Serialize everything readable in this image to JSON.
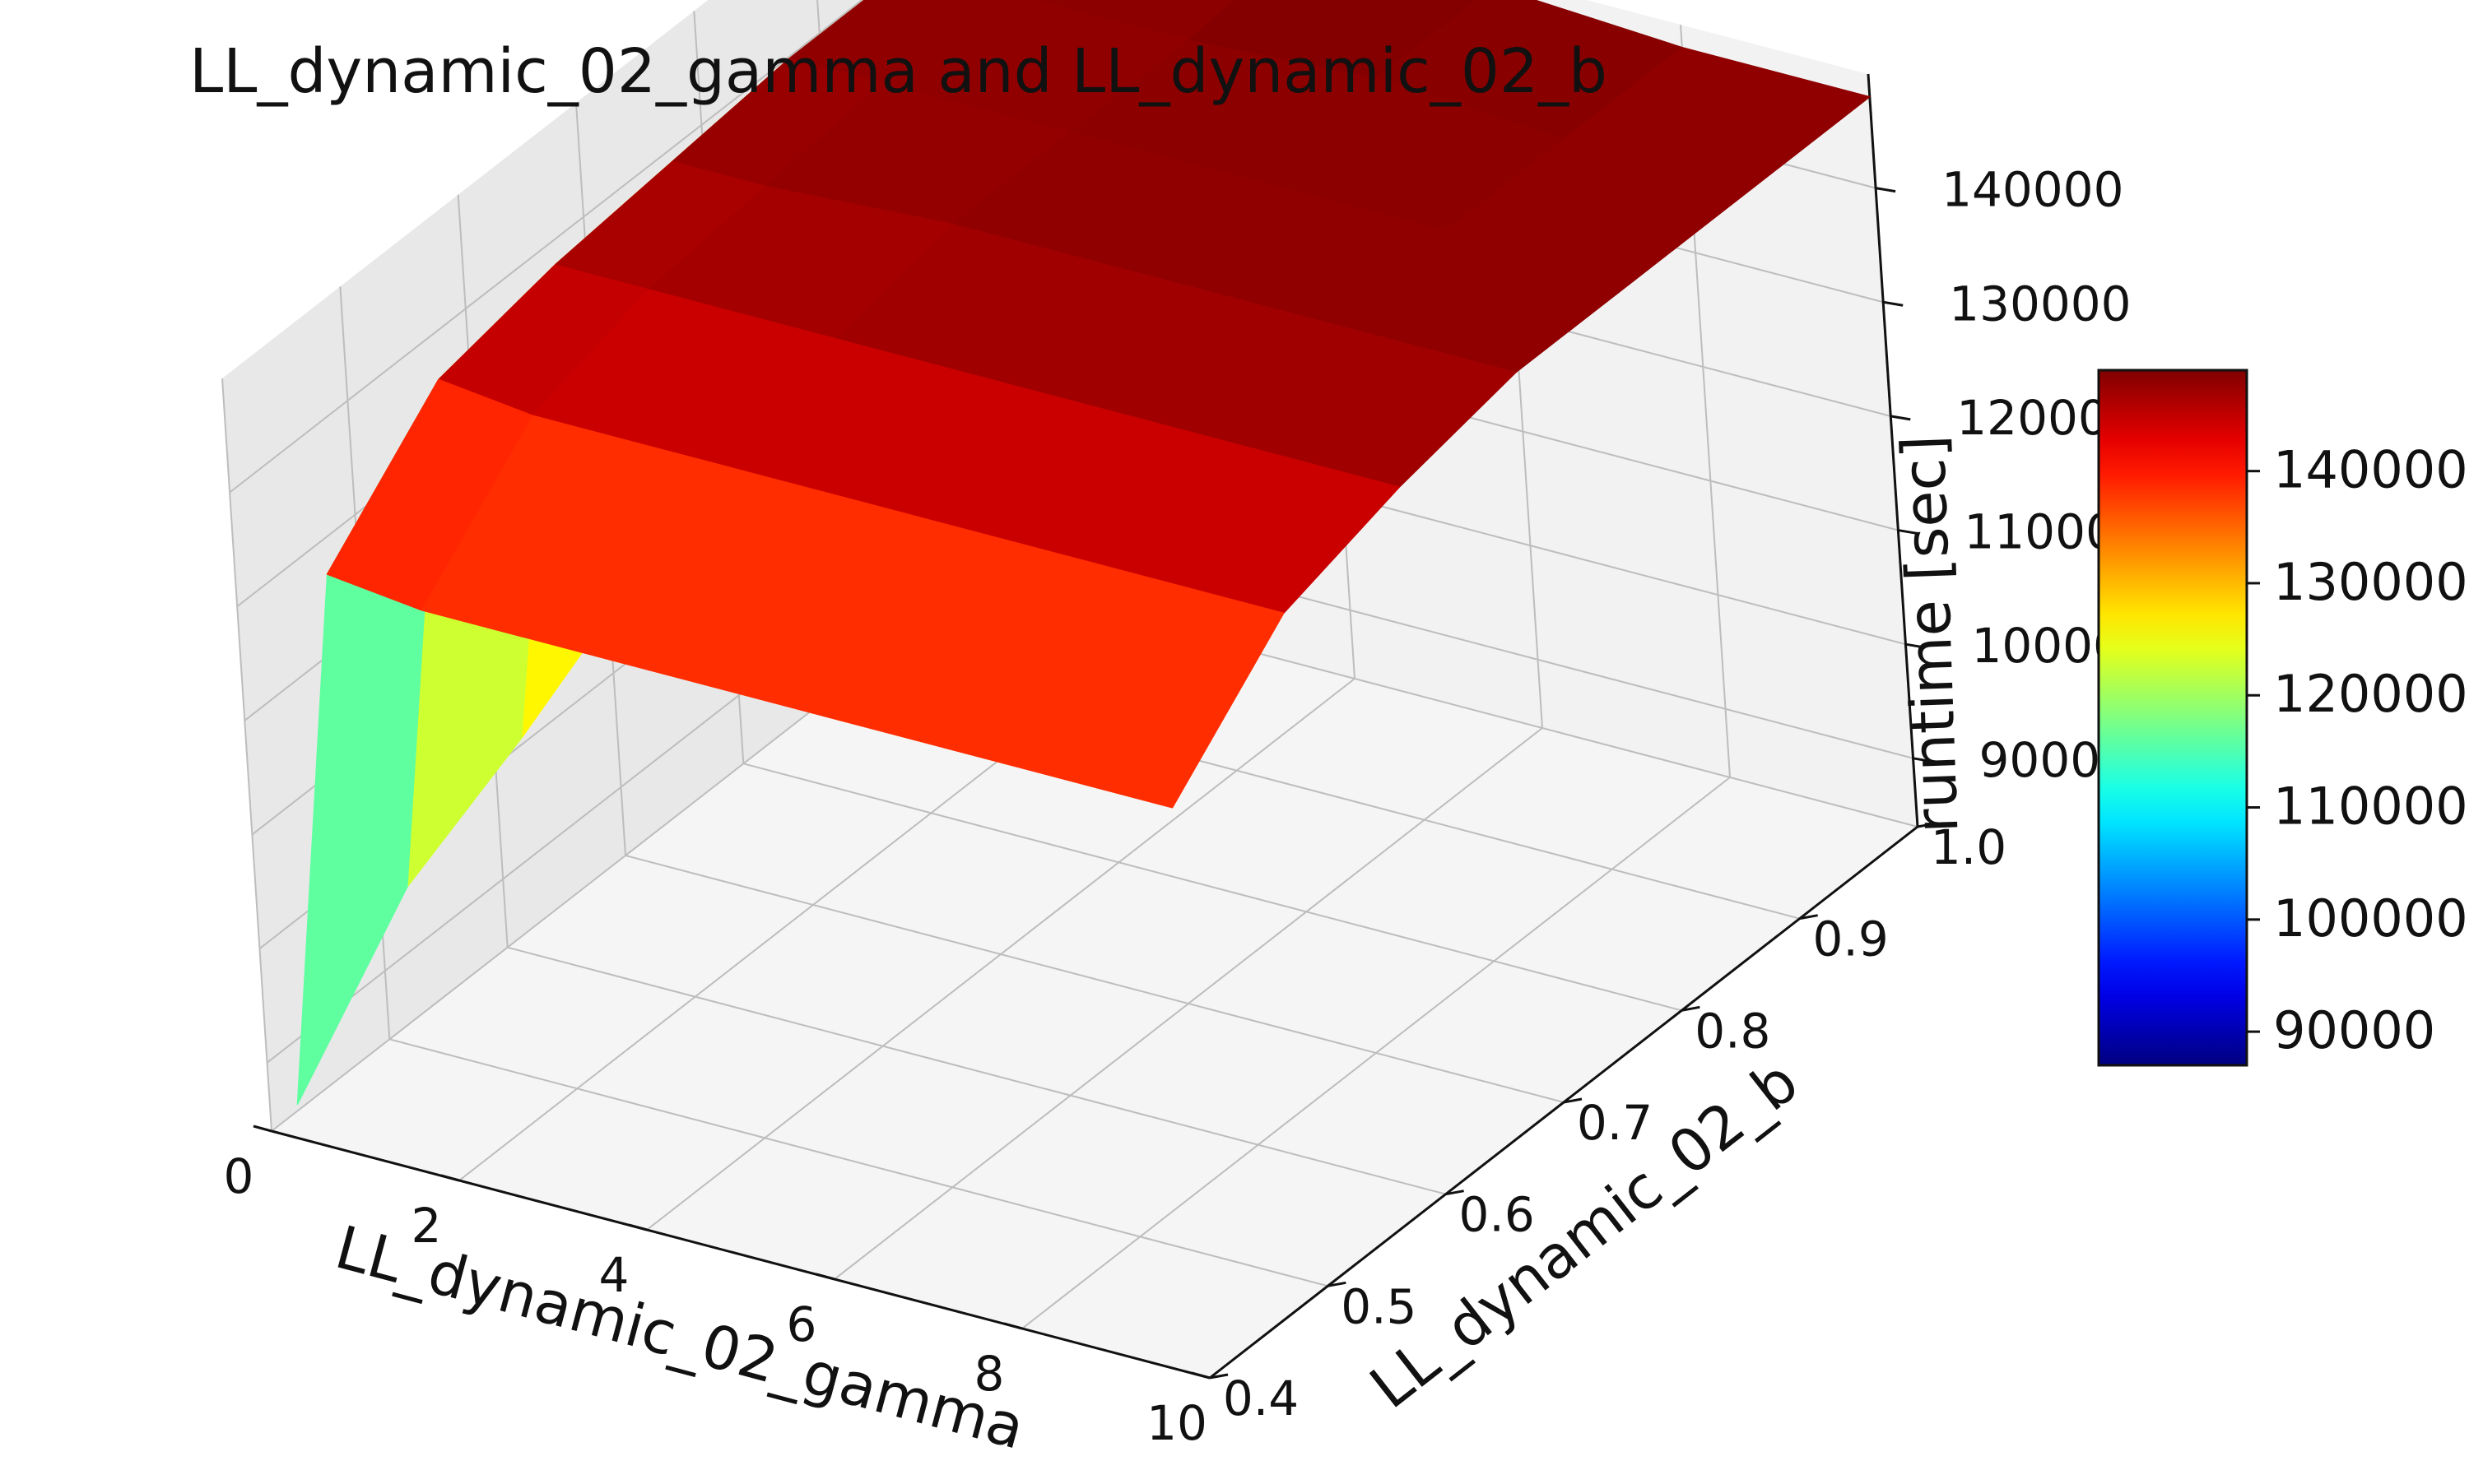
{
  "chart_data": {
    "type": "surface",
    "title": "LL_dynamic_02_gamma and LL_dynamic_02_b",
    "xlabel": "LL_dynamic_02_gamma",
    "ylabel": "LL_dynamic_02_b",
    "zlabel": "runtime [sec]",
    "x_ticks": [
      "0",
      "2",
      "4",
      "6",
      "8",
      "10"
    ],
    "y_ticks": [
      "0.4",
      "0.5",
      "0.6",
      "0.7",
      "0.8",
      "0.9",
      "1.0"
    ],
    "z_ticks": [
      "90000",
      "100000",
      "110000",
      "120000",
      "130000",
      "140000"
    ],
    "colorbar_ticks": [
      "90000",
      "100000",
      "110000",
      "120000",
      "130000",
      "140000"
    ],
    "colormap": "jet",
    "color_range": [
      87000,
      149000
    ],
    "x": [
      0.3,
      1.0,
      2.0,
      4.0,
      6.0,
      8.0,
      10.0
    ],
    "y": [
      0.4,
      0.5,
      0.6,
      0.7,
      0.8,
      0.9,
      1.0
    ],
    "z": [
      [
        87000,
        135000,
        134000,
        134000,
        134000,
        134000,
        134000
      ],
      [
        98000,
        144000,
        143000,
        143000,
        143000,
        143000,
        143000
      ],
      [
        103000,
        146000,
        146000,
        146000,
        146000,
        146000,
        146000
      ],
      [
        109000,
        147000,
        147000,
        148000,
        148000,
        148000,
        148000
      ],
      [
        113000,
        148000,
        148000,
        148000,
        148000,
        148000,
        148000
      ],
      [
        117000,
        148000,
        148000,
        148000,
        149000,
        148000,
        148000
      ],
      [
        120000,
        148000,
        148000,
        149000,
        149000,
        148000,
        148000
      ]
    ],
    "grid": true,
    "colorbar": "right"
  }
}
